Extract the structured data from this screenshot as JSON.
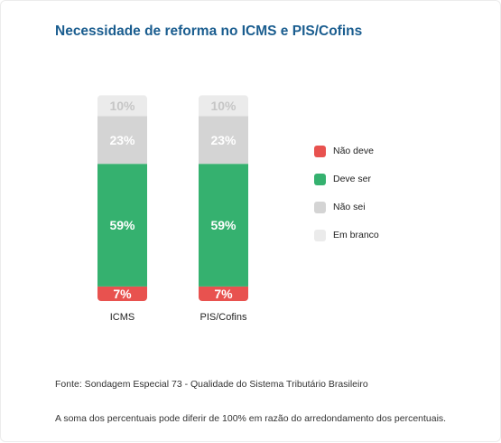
{
  "title": "Necessidade de reforma no ICMS e PIS/Cofins",
  "source_text": "Fonte: Sondagem Especial 73 - Qualidade do Sistema Tributário Brasileiro",
  "note_text": "A soma dos percentuais pode diferir de 100% em razão do arredondamento dos percentuais.",
  "colors": {
    "nao_deve": "#e8524f",
    "deve_ser": "#35b16f",
    "nao_sei": "#d4d4d4",
    "em_branco": "#ebebeb",
    "title": "#1a5d8f"
  },
  "legend": [
    {
      "label": "Não deve",
      "color": "#e8524f"
    },
    {
      "label": "Deve ser",
      "color": "#35b16f"
    },
    {
      "label": "Não sei",
      "color": "#d4d4d4"
    },
    {
      "label": "Em branco",
      "color": "#ebebeb"
    }
  ],
  "chart_data": {
    "type": "bar",
    "stacked": true,
    "orientation": "vertical",
    "title": "Necessidade de reforma no ICMS e PIS/Cofins",
    "categories": [
      "ICMS",
      "PIS/Cofins"
    ],
    "series": [
      {
        "name": "Não deve",
        "color": "#e8524f",
        "values": [
          7,
          7
        ],
        "labels": [
          "7%",
          "7%"
        ]
      },
      {
        "name": "Deve ser",
        "color": "#35b16f",
        "values": [
          59,
          59
        ],
        "labels": [
          "59%",
          "59%"
        ]
      },
      {
        "name": "Não sei",
        "color": "#d4d4d4",
        "values": [
          23,
          23
        ],
        "labels": [
          "23%",
          "23%"
        ]
      },
      {
        "name": "Em branco",
        "color": "#ebebeb",
        "values": [
          10,
          10
        ],
        "labels": [
          "10%",
          "10%"
        ]
      }
    ],
    "legend_position": "right",
    "grid": false
  }
}
